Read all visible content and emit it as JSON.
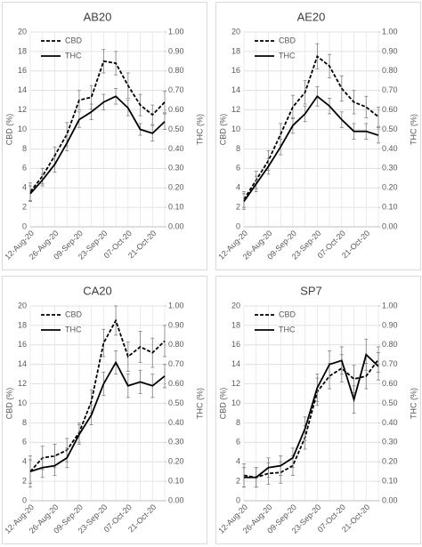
{
  "chart_data": [
    {
      "type": "line",
      "title": "AB20",
      "y_label": "CBD (%)",
      "y2_label": "THC (%)",
      "legend": "upper left",
      "grid": true,
      "categories": [
        "12-Aug-20",
        null,
        "26-Aug-20",
        null,
        "09-Sep-20",
        null,
        "23-Sep-20",
        null,
        "07-Oct-20",
        null,
        "21-Oct-20",
        null
      ],
      "ylim": [
        0,
        20
      ],
      "yticks": [
        0,
        2,
        4,
        6,
        8,
        10,
        12,
        14,
        16,
        18,
        20
      ],
      "y2lim": [
        0,
        1
      ],
      "y2ticks": [
        {
          "value": 0,
          "label": "0.00"
        },
        {
          "value": 0.1,
          "label": "0.10"
        },
        {
          "value": 0.2,
          "label": "0.20"
        },
        {
          "value": 0.3,
          "label": "0.30"
        },
        {
          "value": 0.4,
          "label": "0.40"
        },
        {
          "value": 0.5,
          "label": "0.50"
        },
        {
          "value": 0.6,
          "label": "0.60"
        },
        {
          "value": 0.7,
          "label": "0.70"
        },
        {
          "value": 0.8,
          "label": "0.80"
        },
        {
          "value": 0.9,
          "label": "0.90"
        },
        {
          "value": 1,
          "label": "1.00"
        }
      ],
      "series": [
        {
          "name": "CBD",
          "color": "#000000",
          "line_style": "dashed",
          "values": [
            3.6,
            5.2,
            7.3,
            9.5,
            13,
            13.3,
            17,
            16.8,
            14.5,
            12.5,
            11.5,
            12.8
          ],
          "errors": [
            0.9,
            0.8,
            0.9,
            1.2,
            1,
            1.2,
            1.2,
            1.2,
            1.3,
            1.1,
            1,
            1.1
          ]
        },
        {
          "name": "THC",
          "color": "#000000",
          "line_style": "solid",
          "axis": "y2",
          "values": [
            0.17,
            0.24,
            0.32,
            0.43,
            0.55,
            0.59,
            0.64,
            0.67,
            0.61,
            0.5,
            0.48,
            0.54
          ],
          "errors": [
            0.04,
            0.03,
            0.04,
            0.04,
            0.04,
            0.04,
            0.04,
            0.04,
            0.04,
            0.03,
            0.04,
            0.04
          ]
        }
      ]
    },
    {
      "type": "line",
      "title": "AE20",
      "y_label": "CBD (%)",
      "y2_label": "THC (%)",
      "legend": "upper left",
      "grid": true,
      "categories": [
        "12-Aug-20",
        null,
        "26-Aug-20",
        null,
        "09-Sep-20",
        null,
        "23-Sep-20",
        null,
        "07-Oct-20",
        null,
        "21-Oct-20",
        null
      ],
      "ylim": [
        0,
        20
      ],
      "yticks": [
        0,
        2,
        4,
        6,
        8,
        10,
        12,
        14,
        16,
        18,
        20
      ],
      "y2lim": [
        0,
        1
      ],
      "y2ticks": [
        {
          "value": 0,
          "label": "0.00"
        },
        {
          "value": 0.1,
          "label": "0.10"
        },
        {
          "value": 0.2,
          "label": "0.20"
        },
        {
          "value": 0.3,
          "label": "0.30"
        },
        {
          "value": 0.4,
          "label": "0.40"
        },
        {
          "value": 0.5,
          "label": "0.50"
        },
        {
          "value": 0.6,
          "label": "0.60"
        },
        {
          "value": 0.7,
          "label": "0.70"
        },
        {
          "value": 0.8,
          "label": "0.80"
        },
        {
          "value": 0.9,
          "label": "0.90"
        },
        {
          "value": 1,
          "label": "1.00"
        }
      ],
      "series": [
        {
          "name": "CBD",
          "color": "#000000",
          "line_style": "dashed",
          "values": [
            2.8,
            4.8,
            6.8,
            9.5,
            12.3,
            13.8,
            17.5,
            16.5,
            14.2,
            12.8,
            12.3,
            11.3
          ],
          "errors": [
            0.8,
            0.9,
            1,
            1.1,
            1.2,
            1.2,
            1.3,
            1.2,
            1.3,
            1.2,
            1.1,
            1
          ]
        },
        {
          "name": "THC",
          "color": "#000000",
          "line_style": "solid",
          "axis": "y2",
          "values": [
            0.13,
            0.22,
            0.31,
            0.41,
            0.52,
            0.58,
            0.67,
            0.62,
            0.55,
            0.49,
            0.49,
            0.47
          ],
          "errors": [
            0.04,
            0.04,
            0.04,
            0.04,
            0.04,
            0.04,
            0.05,
            0.04,
            0.04,
            0.04,
            0.04,
            0.04
          ]
        }
      ]
    },
    {
      "type": "line",
      "title": "CA20",
      "y_label": "CBD (%)",
      "y2_label": "THC (%)",
      "legend": "upper left",
      "grid": true,
      "categories": [
        "12-Aug-20",
        null,
        "26-Aug-20",
        null,
        "09-Sep-20",
        null,
        "23-Sep-20",
        null,
        "07-Oct-20",
        null,
        "21-Oct-20",
        null
      ],
      "ylim": [
        0,
        20
      ],
      "yticks": [
        0,
        2,
        4,
        6,
        8,
        10,
        12,
        14,
        16,
        18,
        20
      ],
      "y2lim": [
        0,
        1
      ],
      "y2ticks": [
        {
          "value": 0,
          "label": "0.00"
        },
        {
          "value": 0.1,
          "label": "0.10"
        },
        {
          "value": 0.2,
          "label": "0.20"
        },
        {
          "value": 0.3,
          "label": "0.30"
        },
        {
          "value": 0.4,
          "label": "0.40"
        },
        {
          "value": 0.5,
          "label": "0.50"
        },
        {
          "value": 0.6,
          "label": "0.60"
        },
        {
          "value": 0.7,
          "label": "0.70"
        },
        {
          "value": 0.8,
          "label": "0.80"
        },
        {
          "value": 0.9,
          "label": "0.90"
        },
        {
          "value": 1,
          "label": "1.00"
        }
      ],
      "series": [
        {
          "name": "CBD",
          "color": "#000000",
          "line_style": "dashed",
          "values": [
            3,
            4.4,
            4.6,
            5.2,
            7,
            10.2,
            16.2,
            18.5,
            14.8,
            15.8,
            15.2,
            16.4
          ],
          "errors": [
            1.6,
            1.2,
            1.2,
            1.2,
            1,
            1.2,
            1.4,
            1.5,
            1.5,
            1.6,
            1.5,
            1.6
          ]
        },
        {
          "name": "THC",
          "color": "#000000",
          "line_style": "solid",
          "axis": "y2",
          "values": [
            0.15,
            0.17,
            0.18,
            0.22,
            0.34,
            0.44,
            0.6,
            0.71,
            0.59,
            0.61,
            0.59,
            0.64
          ],
          "errors": [
            0.06,
            0.05,
            0.05,
            0.05,
            0.05,
            0.05,
            0.06,
            0.06,
            0.06,
            0.06,
            0.06,
            0.06
          ]
        }
      ]
    },
    {
      "type": "line",
      "title": "SP7",
      "y_label": "CBD (%)",
      "y2_label": "THC (%)",
      "legend": "upper left",
      "grid": true,
      "categories": [
        "12-Aug-20",
        null,
        "26-Aug-20",
        null,
        "09-Sep-20",
        null,
        "23-Sep-20",
        null,
        "07-Oct-20",
        null,
        "21-Oct-20",
        null
      ],
      "ylim": [
        0,
        20
      ],
      "yticks": [
        0,
        2,
        4,
        6,
        8,
        10,
        12,
        14,
        16,
        18,
        20
      ],
      "y2lim": [
        0,
        1
      ],
      "y2ticks": [
        {
          "value": 0,
          "label": "0.00"
        },
        {
          "value": 0.1,
          "label": "0.10"
        },
        {
          "value": 0.2,
          "label": "0.20"
        },
        {
          "value": 0.3,
          "label": "0.30"
        },
        {
          "value": 0.4,
          "label": "0.40"
        },
        {
          "value": 0.5,
          "label": "0.50"
        },
        {
          "value": 0.6,
          "label": "0.60"
        },
        {
          "value": 0.7,
          "label": "0.70"
        },
        {
          "value": 0.8,
          "label": "0.80"
        },
        {
          "value": 0.9,
          "label": "0.90"
        },
        {
          "value": 1,
          "label": "1.00"
        }
      ],
      "series": [
        {
          "name": "CBD",
          "color": "#000000",
          "line_style": "dashed",
          "values": [
            2.6,
            2.4,
            2.8,
            2.9,
            3.6,
            6.5,
            11.2,
            12.8,
            13.6,
            12.5,
            12.8,
            14.5
          ],
          "errors": [
            1.2,
            1,
            1.1,
            1.1,
            1,
            1.2,
            1.4,
            1.3,
            1.4,
            1.4,
            1.3,
            1.3
          ]
        },
        {
          "name": "THC",
          "color": "#000000",
          "line_style": "solid",
          "axis": "y2",
          "values": [
            0.12,
            0.12,
            0.17,
            0.18,
            0.22,
            0.37,
            0.58,
            0.7,
            0.72,
            0.52,
            0.75,
            0.69
          ],
          "errors": [
            0.05,
            0.05,
            0.05,
            0.05,
            0.05,
            0.06,
            0.07,
            0.07,
            0.07,
            0.07,
            0.08,
            0.07
          ]
        }
      ]
    }
  ]
}
